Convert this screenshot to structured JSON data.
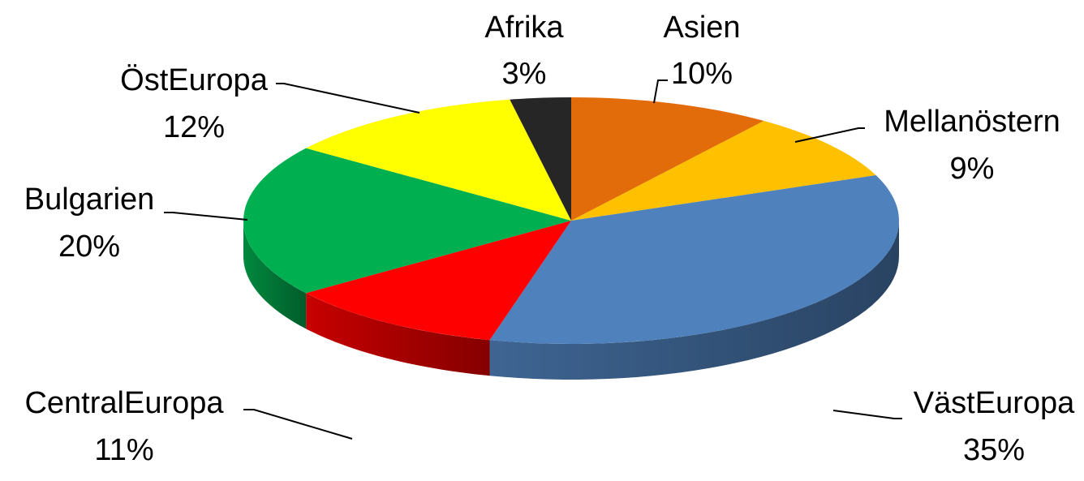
{
  "chart_data": {
    "type": "pie",
    "style": "3d-exploded-none",
    "title": "",
    "start_angle_note": "first slice starts at top, clockwise",
    "slices": [
      {
        "label": "Asien",
        "percent_label": "10%",
        "value": 10,
        "color": "#E26B0A"
      },
      {
        "label": "Mellanöstern",
        "percent_label": "9%",
        "value": 9,
        "color": "#FFC000"
      },
      {
        "label": "VästEuropa",
        "percent_label": "35%",
        "value": 35,
        "color": "#4F81BD"
      },
      {
        "label": "CentralEuropa",
        "percent_label": "11%",
        "value": 11,
        "color": "#FF0000"
      },
      {
        "label": "Bulgarien",
        "percent_label": "20%",
        "value": 20,
        "color": "#00B050"
      },
      {
        "label": "ÖstEuropa",
        "percent_label": "12%",
        "value": 12,
        "color": "#FFFF00"
      },
      {
        "label": "Afrika",
        "percent_label": "3%",
        "value": 3,
        "color": "#262626"
      }
    ]
  }
}
